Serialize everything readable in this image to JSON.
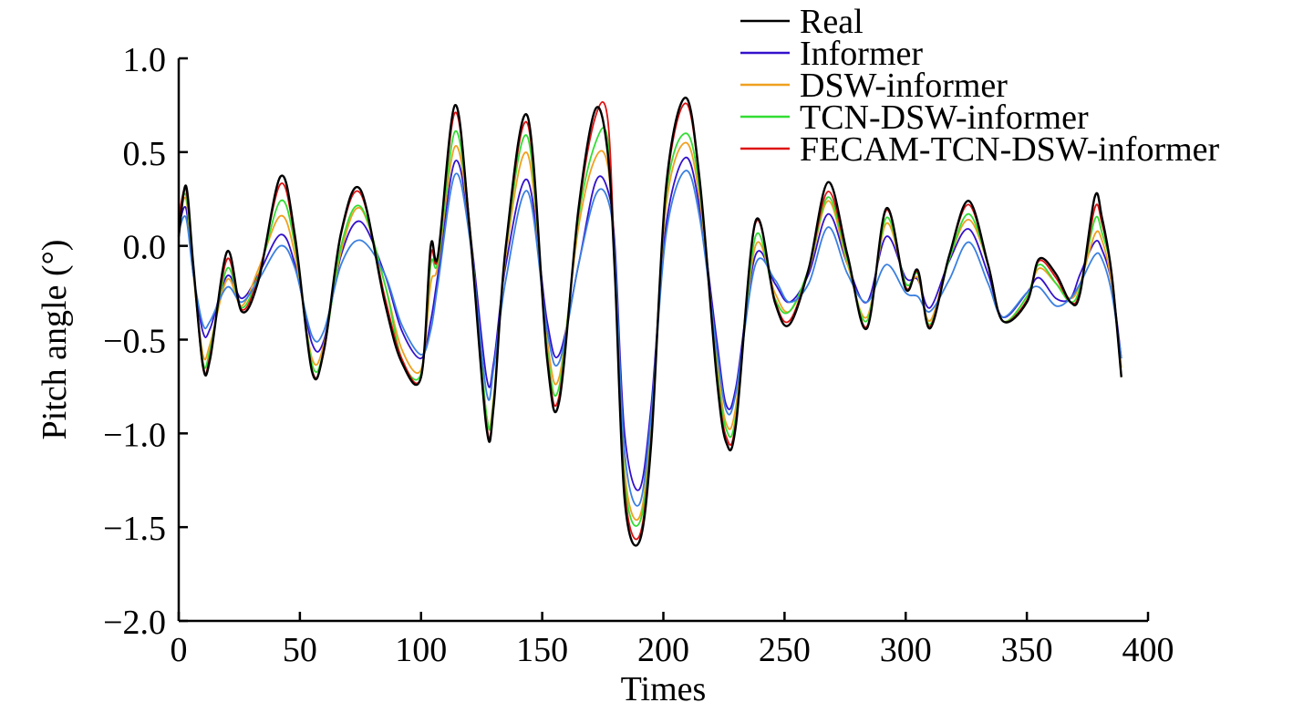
{
  "chart_data": {
    "type": "line",
    "title": "",
    "xlabel": "Times",
    "ylabel": "Pitch angle (°)",
    "xlim": [
      0,
      400
    ],
    "ylim": [
      -2.0,
      1.0
    ],
    "xticks": [
      0,
      50,
      100,
      150,
      200,
      250,
      300,
      350,
      400
    ],
    "xtick_labels": [
      "0",
      "50",
      "100",
      "150",
      "200",
      "250",
      "300",
      "350",
      "400"
    ],
    "yticks": [
      1.0,
      0.5,
      0.0,
      -0.5,
      -1.0,
      -1.5,
      -2.0
    ],
    "ytick_labels": [
      "1.0",
      "0.5",
      "0.0",
      "−0.5",
      "−1.0",
      "−1.5",
      "−2.0"
    ],
    "grid": false,
    "legend_position": "top-right",
    "x": [
      0,
      3,
      6,
      10,
      13,
      20,
      26,
      33,
      42,
      48,
      55,
      60,
      67,
      75,
      85,
      92,
      100,
      104,
      107,
      114,
      120,
      127,
      130,
      135,
      144,
      152,
      157,
      165,
      172,
      177,
      180,
      184,
      190,
      195,
      201,
      209,
      215,
      222,
      226,
      230,
      238,
      246,
      252,
      260,
      268,
      276,
      284,
      292,
      300,
      305,
      310,
      318,
      326,
      334,
      340,
      350,
      355,
      362,
      368,
      372,
      378,
      381,
      385,
      389
    ],
    "series": [
      {
        "name": "Real",
        "color": "#000000",
        "values": [
          0.05,
          0.32,
          -0.1,
          -0.64,
          -0.6,
          -0.03,
          -0.35,
          -0.18,
          0.37,
          0.05,
          -0.67,
          -0.55,
          0.07,
          0.3,
          -0.3,
          -0.62,
          -0.7,
          0.0,
          -0.05,
          0.75,
          0.1,
          -0.97,
          -0.85,
          0.0,
          0.69,
          -0.6,
          -0.83,
          0.2,
          0.73,
          0.5,
          -0.15,
          -1.35,
          -1.58,
          -1.05,
          0.3,
          0.79,
          0.35,
          -0.7,
          -1.05,
          -0.95,
          0.13,
          -0.3,
          -0.42,
          -0.12,
          0.34,
          -0.05,
          -0.44,
          0.2,
          -0.23,
          -0.13,
          -0.44,
          -0.05,
          0.24,
          -0.1,
          -0.4,
          -0.3,
          -0.07,
          -0.15,
          -0.3,
          -0.25,
          0.26,
          0.15,
          -0.15,
          -0.7
        ]
      },
      {
        "name": "Informer",
        "color": "#3311cc",
        "values": [
          0.1,
          0.2,
          -0.15,
          -0.46,
          -0.44,
          -0.16,
          -0.28,
          -0.15,
          0.06,
          -0.1,
          -0.52,
          -0.5,
          -0.05,
          0.13,
          -0.15,
          -0.45,
          -0.6,
          -0.4,
          -0.15,
          0.45,
          0.1,
          -0.7,
          -0.62,
          -0.1,
          0.35,
          -0.4,
          -0.58,
          -0.1,
          0.34,
          0.3,
          0.0,
          -1.0,
          -1.3,
          -0.85,
          0.1,
          0.47,
          0.2,
          -0.5,
          -0.85,
          -0.75,
          -0.05,
          -0.2,
          -0.3,
          -0.15,
          0.17,
          -0.1,
          -0.3,
          0.05,
          -0.17,
          -0.18,
          -0.33,
          -0.08,
          0.09,
          -0.15,
          -0.38,
          -0.25,
          -0.17,
          -0.28,
          -0.28,
          -0.15,
          0.02,
          -0.02,
          -0.2,
          -0.6
        ]
      },
      {
        "name": "DSW-informer",
        "color": "#f0a020",
        "values": [
          0.12,
          0.25,
          -0.15,
          -0.58,
          -0.52,
          -0.18,
          -0.32,
          -0.12,
          0.16,
          -0.05,
          -0.6,
          -0.52,
          -0.03,
          0.2,
          -0.2,
          -0.55,
          -0.66,
          -0.2,
          -0.1,
          0.53,
          0.1,
          -0.9,
          -0.8,
          -0.05,
          0.49,
          -0.5,
          -0.7,
          0.1,
          0.47,
          0.43,
          -0.1,
          -1.2,
          -1.45,
          -0.95,
          0.2,
          0.55,
          0.25,
          -0.6,
          -0.95,
          -0.85,
          0.0,
          -0.25,
          -0.35,
          -0.13,
          0.24,
          -0.1,
          -0.38,
          0.12,
          -0.2,
          -0.17,
          -0.4,
          -0.07,
          0.14,
          -0.1,
          -0.4,
          -0.27,
          -0.12,
          -0.2,
          -0.28,
          -0.2,
          0.06,
          0.03,
          -0.2,
          -0.65
        ]
      },
      {
        "name": "TCN-DSW-informer",
        "color": "#33dd33",
        "values": [
          0.15,
          0.27,
          -0.12,
          -0.62,
          -0.55,
          -0.12,
          -0.33,
          -0.15,
          0.24,
          0.0,
          -0.63,
          -0.55,
          0.0,
          0.21,
          -0.2,
          -0.6,
          -0.68,
          -0.1,
          -0.08,
          0.61,
          0.12,
          -0.9,
          -0.82,
          -0.02,
          0.58,
          -0.55,
          -0.75,
          0.15,
          0.55,
          0.57,
          -0.1,
          -1.25,
          -1.48,
          -1.0,
          0.25,
          0.6,
          0.3,
          -0.65,
          -0.98,
          -0.9,
          0.05,
          -0.28,
          -0.35,
          -0.12,
          0.26,
          -0.08,
          -0.4,
          0.15,
          -0.2,
          -0.15,
          -0.42,
          -0.07,
          0.17,
          -0.1,
          -0.4,
          -0.27,
          -0.1,
          -0.2,
          -0.3,
          -0.22,
          0.14,
          0.07,
          -0.15,
          -0.7
        ]
      },
      {
        "name": "FECAM-TCN-DSW-informer",
        "color": "#dd1111",
        "values": [
          0.15,
          0.3,
          -0.1,
          -0.65,
          -0.58,
          -0.07,
          -0.34,
          -0.16,
          0.33,
          0.03,
          -0.66,
          -0.56,
          0.06,
          0.28,
          -0.27,
          -0.6,
          -0.7,
          -0.05,
          -0.06,
          0.71,
          0.12,
          -0.95,
          -0.84,
          -0.01,
          0.65,
          -0.58,
          -0.8,
          0.18,
          0.69,
          0.68,
          -0.12,
          -1.3,
          -1.55,
          -1.02,
          0.28,
          0.76,
          0.34,
          -0.68,
          -1.02,
          -0.93,
          0.12,
          -0.29,
          -0.4,
          -0.12,
          0.29,
          -0.06,
          -0.43,
          0.19,
          -0.22,
          -0.14,
          -0.43,
          -0.05,
          0.22,
          -0.1,
          -0.4,
          -0.29,
          -0.08,
          -0.17,
          -0.3,
          -0.24,
          0.2,
          0.12,
          -0.15,
          -0.7
        ]
      },
      {
        "name": "",
        "color": "#3a80e0",
        "values": [
          0.08,
          0.15,
          -0.15,
          -0.42,
          -0.4,
          -0.22,
          -0.3,
          -0.18,
          0.0,
          -0.12,
          -0.48,
          -0.45,
          -0.1,
          0.03,
          -0.15,
          -0.42,
          -0.58,
          -0.45,
          -0.2,
          0.38,
          0.05,
          -0.78,
          -0.65,
          -0.18,
          0.29,
          -0.45,
          -0.62,
          -0.1,
          0.27,
          0.25,
          -0.05,
          -1.1,
          -1.38,
          -0.9,
          0.05,
          0.4,
          0.15,
          -0.55,
          -0.88,
          -0.78,
          -0.1,
          -0.18,
          -0.3,
          -0.2,
          0.1,
          -0.15,
          -0.3,
          -0.1,
          -0.25,
          -0.27,
          -0.35,
          -0.18,
          0.02,
          -0.2,
          -0.38,
          -0.25,
          -0.22,
          -0.32,
          -0.28,
          -0.2,
          -0.05,
          -0.07,
          -0.25,
          -0.6
        ]
      }
    ]
  }
}
